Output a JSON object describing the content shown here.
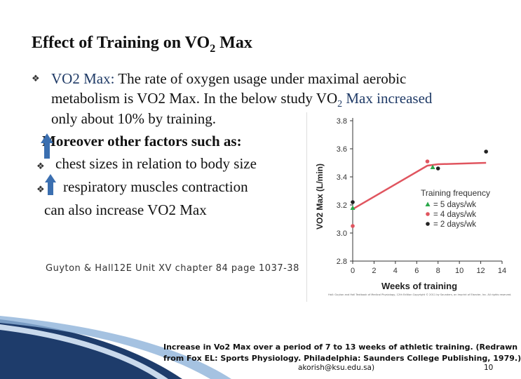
{
  "slide": {
    "title_pre": "Effect of Training on VO",
    "title_sub": "2",
    "title_post": " Max",
    "bullet1_label": "VO2 Max:",
    "bullet1_line1": " The rate of oxygen usage under maximal aerobic",
    "bullet1_line2": "metabolism is VO2 Max. In the below study VO",
    "bullet1_line2_sub": "2",
    "bullet1_line2_end": " Max increased",
    "bullet1_line3": "only about 10% by training.",
    "moreover": "Moreover other factors such as:",
    "item1": "chest sizes in relation to body size",
    "item2": "respiratory muscles contraction",
    "conclusion": "can also  increase VO2 Max",
    "citation": "Guyton & Hall12E Unit XV chapter 84 page 1037-38",
    "caption_line1": "Increase in Vo2 Max over a period of 7 to 13 weeks of athletic training. (Redrawn",
    "caption_line2": "from Fox EL: Sports Physiology. Philadelphia: Saunders College Publishing, 1979.)",
    "email": "akorish@ksu.edu.sa)",
    "page_number": "10",
    "accent_color": "#1f3a66",
    "arrow_color": "#3b6fb0"
  },
  "chart_data": {
    "type": "line",
    "ylabel": "VO2 Max (L/min)",
    "xlabel": "Weeks of training",
    "ylim": [
      2.8,
      3.8
    ],
    "xlim": [
      0,
      14
    ],
    "x_ticks": [
      "0",
      "2",
      "4",
      "6",
      "8",
      "10",
      "12",
      "14"
    ],
    "y_ticks": [
      "2.8",
      "3.0",
      "3.2",
      "3.4",
      "3.6",
      "3.8"
    ],
    "legend_title": "Training frequency",
    "legend_position": "bottom-right",
    "line": {
      "x": [
        0,
        7,
        8,
        12.5
      ],
      "y": [
        3.17,
        3.48,
        3.49,
        3.5
      ],
      "color": "#e0555f"
    },
    "series": [
      {
        "name": "= 5 days/wk",
        "color": "#2aa84a",
        "shape": "triangle",
        "points": [
          [
            0,
            3.18
          ],
          [
            7.5,
            3.47
          ]
        ]
      },
      {
        "name": "= 4 days/wk",
        "color": "#e0555f",
        "shape": "circle",
        "points": [
          [
            0,
            3.05
          ],
          [
            7,
            3.51
          ]
        ]
      },
      {
        "name": "= 2 days/wk",
        "color": "#222222",
        "shape": "circle",
        "points": [
          [
            0,
            3.22
          ],
          [
            8,
            3.46
          ],
          [
            12.5,
            3.58
          ]
        ]
      }
    ],
    "footer": "Hall: Guyton and Hall Textbook of Medical Physiology, 12th Edition Copyright © 2011 by Saunders, an imprint of Elsevier, Inc. All rights reserved."
  }
}
